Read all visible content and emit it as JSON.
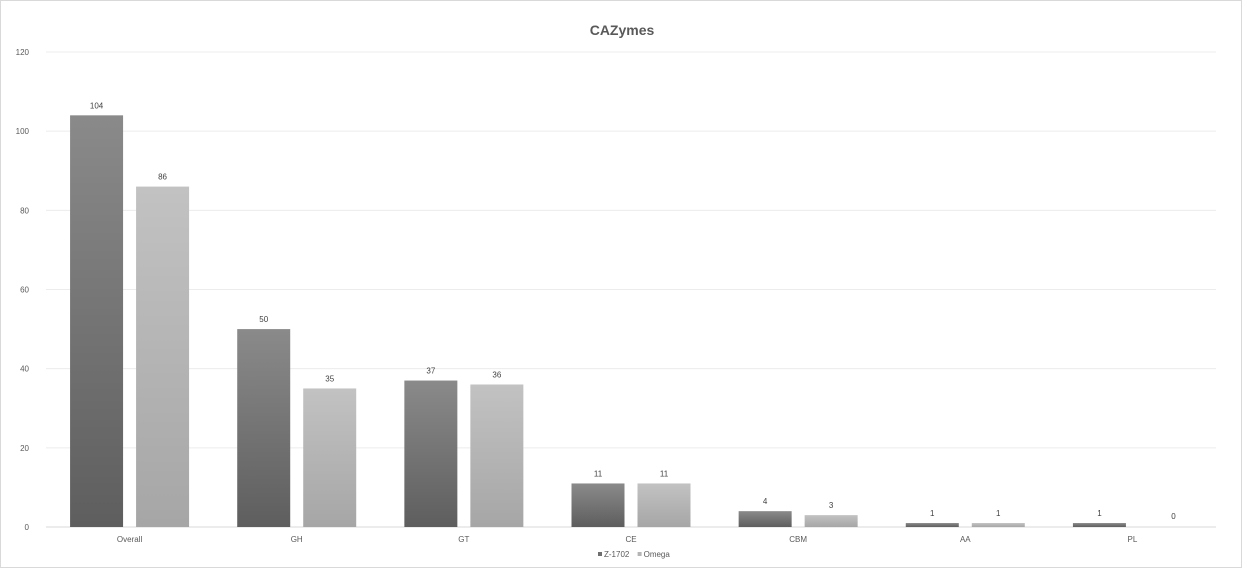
{
  "chart_data": {
    "type": "bar",
    "title": "CAZymes",
    "categories": [
      "Overall",
      "GH",
      "GT",
      "CE",
      "CBM",
      "AA",
      "PL"
    ],
    "series": [
      {
        "name": "Z-1702",
        "values": [
          104,
          50,
          37,
          11,
          4,
          1,
          1
        ],
        "color": "#6e6e6e"
      },
      {
        "name": "Omega",
        "values": [
          86,
          35,
          36,
          11,
          3,
          1,
          0
        ],
        "color": "#b5b5b5"
      }
    ],
    "ylim": [
      0,
      120
    ],
    "yticks": [
      0,
      20,
      40,
      60,
      80,
      100,
      120
    ],
    "grid": true,
    "legend": "bottom",
    "xlabel": "",
    "ylabel": ""
  }
}
